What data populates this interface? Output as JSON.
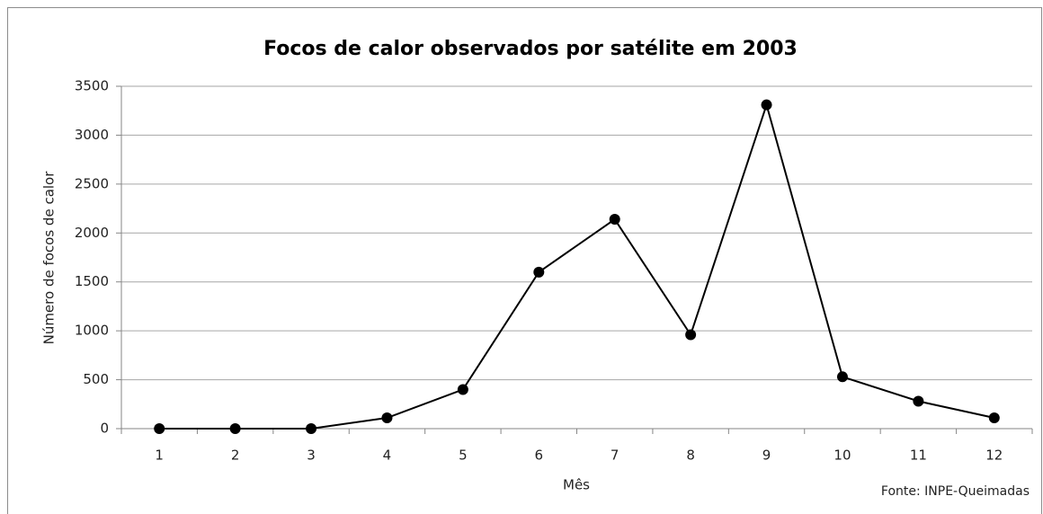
{
  "chart_data": {
    "type": "line",
    "title": "Focos de calor observados por satélite em 2003",
    "x_label": "Mês",
    "y_label": "Número de focos de calor",
    "annotation": "Fonte: INPE-Queimadas",
    "categories": [
      "1",
      "2",
      "3",
      "4",
      "5",
      "6",
      "7",
      "8",
      "9",
      "10",
      "11",
      "12"
    ],
    "values": [
      0,
      0,
      0,
      110,
      400,
      1600,
      2140,
      960,
      3310,
      530,
      280,
      110
    ],
    "color": "#000000",
    "ylim": [
      0,
      3500
    ],
    "yticks": [
      0,
      500,
      1000,
      1500,
      2000,
      2500,
      3000,
      3500
    ],
    "grid": true
  }
}
